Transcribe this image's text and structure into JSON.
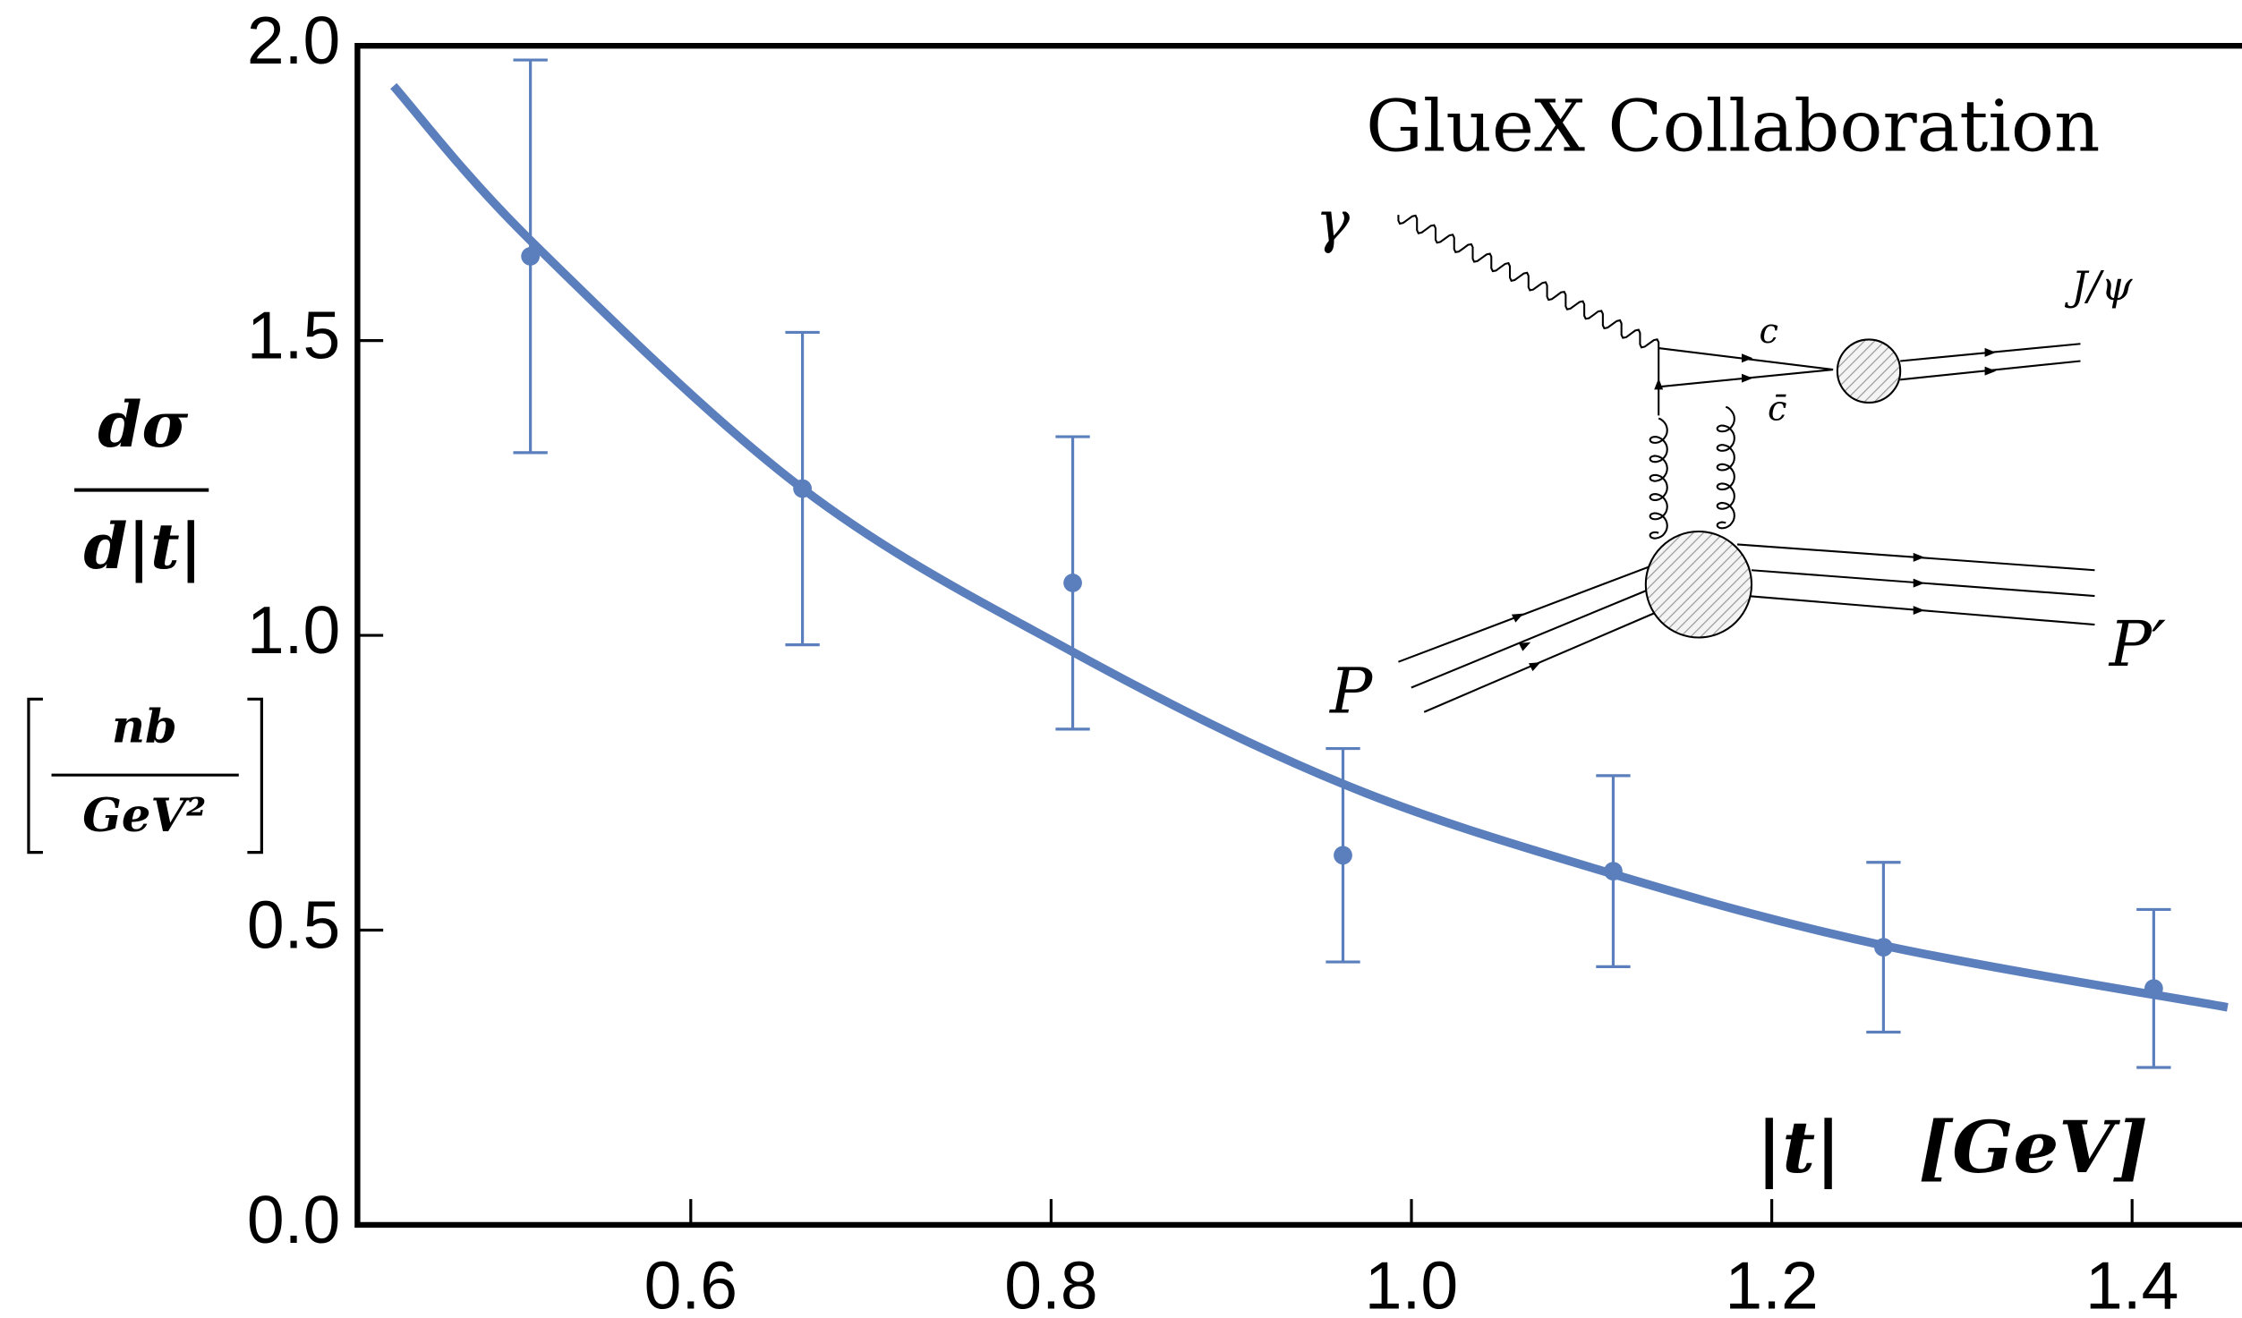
{
  "chart_data": {
    "type": "scatter",
    "ylabel_numerator": "dσ",
    "ylabel_denominator": "d|t|",
    "yunit_numerator": "nb",
    "yunit_denominator": "GeV²",
    "xlabel": "|t|",
    "xunit": "[GeV]",
    "xlim": [
      0.415,
      1.461
    ],
    "ylim": [
      0,
      2
    ],
    "xticks": [
      0.6,
      0.8,
      {
        "value": 1,
        "label": "1.0"
      },
      1.2,
      1.4
    ],
    "yticks": [
      {
        "value": 0,
        "label": "0.0"
      },
      0.5,
      {
        "value": 1,
        "label": "1.0"
      },
      1.5,
      {
        "value": 2,
        "label": "2.0"
      }
    ],
    "points": {
      "color": "#5b7fbd",
      "x": [
        0.511,
        0.662,
        0.812,
        0.962,
        1.112,
        1.262,
        1.412
      ],
      "values": [
        1.643,
        1.249,
        1.089,
        0.627,
        0.6,
        0.471,
        0.401
      ],
      "errors": [
        0.333,
        0.265,
        0.248,
        0.181,
        0.162,
        0.144,
        0.134
      ]
    },
    "curve": {
      "color": "#5b7fbd",
      "x": [
        0.435,
        0.511,
        0.662,
        0.812,
        0.962,
        1.112,
        1.262,
        1.453
      ],
      "values": [
        1.932,
        1.67,
        1.249,
        0.972,
        0.748,
        0.595,
        0.474,
        0.369
      ]
    },
    "inset": {
      "title": "GlueX Collaboration",
      "photon": "γ",
      "charm": "c",
      "anticharm": "c̄",
      "jpsi": "J/ψ",
      "proton_in": "P",
      "proton_out": "P′"
    }
  }
}
